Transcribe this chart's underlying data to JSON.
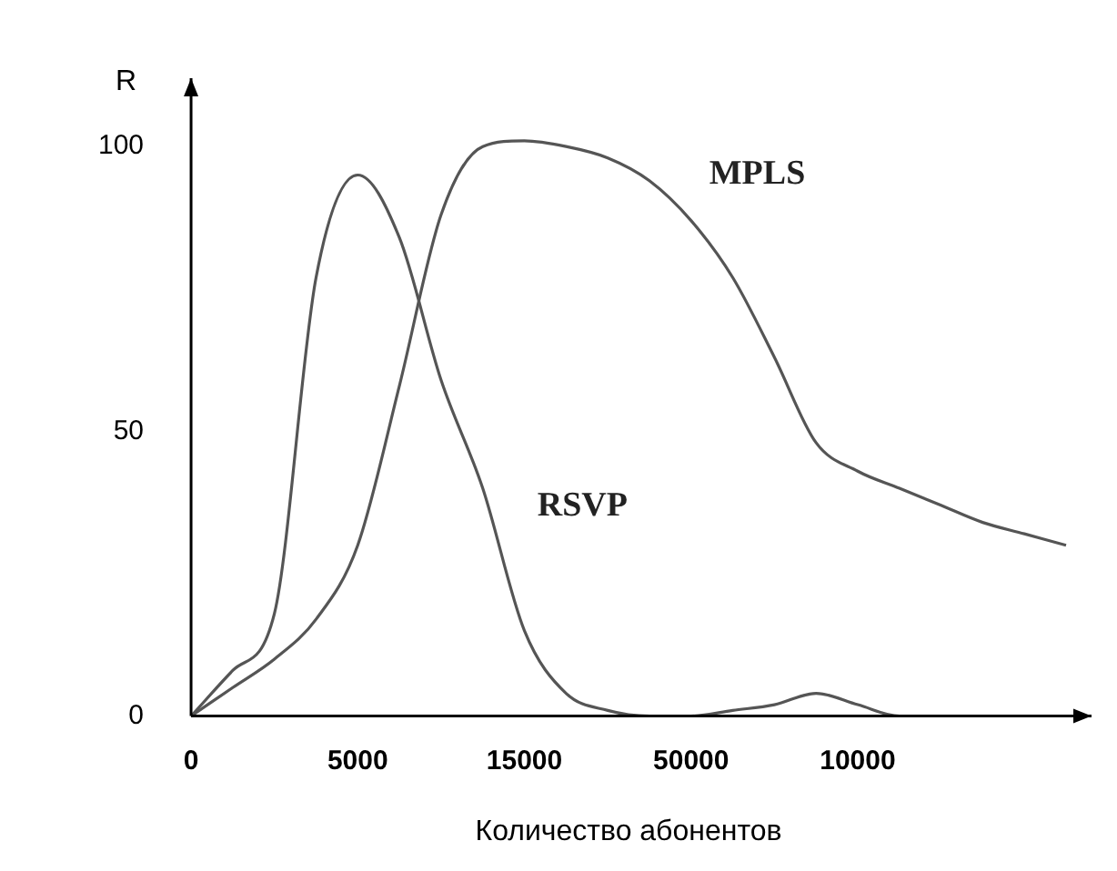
{
  "chart_data": {
    "type": "line",
    "ylabel": "R",
    "xlabel": "Количество абонентов",
    "categories": [
      "0",
      null,
      null,
      null,
      "5000",
      null,
      null,
      null,
      "15000",
      null,
      null,
      null,
      "50000",
      null,
      null,
      null,
      "10000",
      null,
      null,
      null,
      null,
      null
    ],
    "ylim": [
      0,
      112
    ],
    "yticks": [
      0,
      50,
      100
    ],
    "grid": false,
    "legend": false,
    "marker": "none",
    "line_style": "solid",
    "series": [
      {
        "name": "RSVP",
        "color": "#555555",
        "values": [
          0,
          8,
          18,
          77,
          95,
          84,
          59,
          40,
          15,
          4,
          1,
          0,
          0,
          1,
          2,
          4,
          2,
          0,
          0,
          0,
          null,
          null
        ]
      },
      {
        "name": "MPLS",
        "color": "#555555",
        "values": [
          0,
          5,
          10,
          17,
          30,
          58,
          88,
          100,
          101,
          100,
          98,
          94,
          87,
          77,
          63,
          48,
          43,
          40,
          37,
          34,
          32,
          30
        ]
      }
    ]
  }
}
